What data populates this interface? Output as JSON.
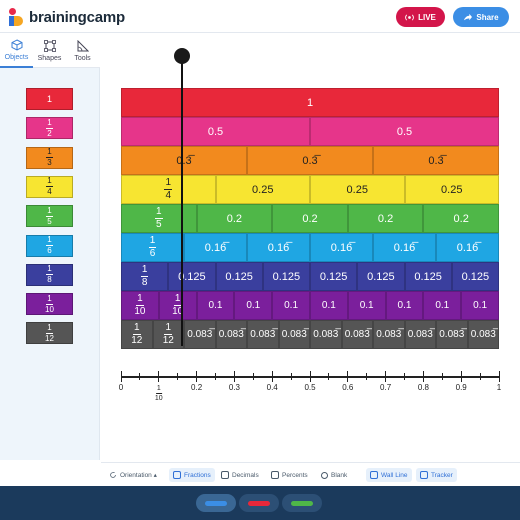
{
  "app": {
    "brand": "brainingcamp"
  },
  "header": {
    "live_label": "LIVE",
    "share_label": "Share"
  },
  "tabs": [
    {
      "label": "Objects",
      "icon": "cube-icon"
    },
    {
      "label": "Shapes",
      "icon": "square-select-icon"
    },
    {
      "label": "Tools",
      "icon": "protractor-icon"
    }
  ],
  "sidebar_tiles": [
    {
      "label": "1",
      "color": "#e8283a"
    },
    {
      "n": "1",
      "d": "2",
      "color": "#e6358a"
    },
    {
      "n": "1",
      "d": "3",
      "color": "#f28a1e"
    },
    {
      "n": "1",
      "d": "4",
      "color": "#f7e531"
    },
    {
      "n": "1",
      "d": "5",
      "color": "#4fb748"
    },
    {
      "n": "1",
      "d": "6",
      "color": "#1fa6e3"
    },
    {
      "n": "1",
      "d": "8",
      "color": "#3a3f9e"
    },
    {
      "n": "1",
      "d": "10",
      "color": "#7b1f9c"
    },
    {
      "n": "1",
      "d": "12",
      "color": "#555555"
    }
  ],
  "rows": [
    {
      "color": "#e8283a",
      "segments": [
        "1"
      ]
    },
    {
      "color": "#e6358a",
      "segments": [
        "0.5",
        "0.5"
      ]
    },
    {
      "color": "#f28a1e",
      "segments": [
        "0.3̅",
        "0.3̅",
        "0.3̅"
      ]
    },
    {
      "color": "#f7e531",
      "segments": [
        {
          "n": "1",
          "d": "4"
        },
        "0.25",
        "0.25",
        "0.25"
      ]
    },
    {
      "color": "#4fb748",
      "segments": [
        {
          "n": "1",
          "d": "5"
        },
        "0.2",
        "0.2",
        "0.2",
        "0.2"
      ]
    },
    {
      "color": "#1fa6e3",
      "segments": [
        {
          "n": "1",
          "d": "6"
        },
        "0.16̅",
        "0.16̅",
        "0.16̅",
        "0.16̅",
        "0.16̅"
      ]
    },
    {
      "color": "#3a3f9e",
      "segments": [
        {
          "n": "1",
          "d": "8"
        },
        "0.125",
        "0.125",
        "0.125",
        "0.125",
        "0.125",
        "0.125",
        "0.125"
      ]
    },
    {
      "color": "#7b1f9c",
      "segments": [
        {
          "n": "1",
          "d": "10"
        },
        {
          "n": "1",
          "d": "10"
        },
        "0.1",
        "0.1",
        "0.1",
        "0.1",
        "0.1",
        "0.1",
        "0.1",
        "0.1"
      ]
    },
    {
      "color": "#555555",
      "segments": [
        {
          "n": "1",
          "d": "12"
        },
        {
          "n": "1",
          "d": "12"
        },
        "0.083̅",
        "0.083̅",
        "0.083̅",
        "0.083̅",
        "0.083̅",
        "0.083̅",
        "0.083̅",
        "0.083̅",
        "0.083̅",
        "0.083̅"
      ]
    }
  ],
  "number_line": {
    "labels": [
      {
        "v": 0,
        "text": "0"
      },
      {
        "v": 0.1,
        "n": "1",
        "d": "10"
      },
      {
        "v": 0.2,
        "text": "0.2"
      },
      {
        "v": 0.3,
        "text": "0.3"
      },
      {
        "v": 0.4,
        "text": "0.4"
      },
      {
        "v": 0.5,
        "text": "0.5"
      },
      {
        "v": 0.6,
        "text": "0.6"
      },
      {
        "v": 0.7,
        "text": "0.7"
      },
      {
        "v": 0.8,
        "text": "0.8"
      },
      {
        "v": 0.9,
        "text": "0.9"
      },
      {
        "v": 1,
        "text": "1"
      }
    ]
  },
  "modebar": {
    "orientation": "Orientation ▴",
    "fractions": "Fractions",
    "decimals": "Decimals",
    "percents": "Percents",
    "blank": "Blank",
    "wall_line": "Wall Line",
    "tracker": "Tracker"
  },
  "pens": [
    {
      "name": "blue-pen",
      "color": "#3b8ee5"
    },
    {
      "name": "red-pen",
      "color": "#e8283a"
    },
    {
      "name": "green-pen",
      "color": "#4fb748"
    }
  ]
}
